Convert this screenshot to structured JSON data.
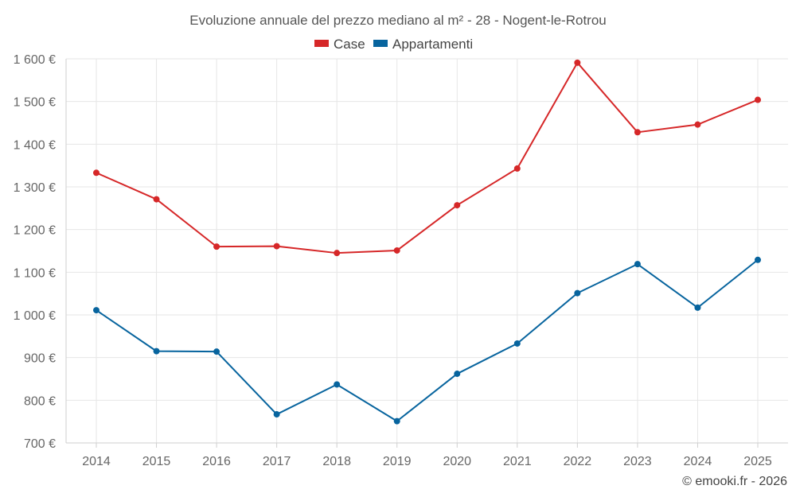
{
  "chart_data": {
    "type": "line",
    "title": "Evoluzione annuale del prezzo mediano al m² - 28 - Nogent-le-Rotrou",
    "xlabel": "",
    "ylabel": "",
    "categories": [
      "2014",
      "2015",
      "2016",
      "2017",
      "2018",
      "2019",
      "2020",
      "2021",
      "2022",
      "2023",
      "2024",
      "2025"
    ],
    "ylim": [
      700,
      1600
    ],
    "yticks": [
      700,
      800,
      900,
      1000,
      1100,
      1200,
      1300,
      1400,
      1500,
      1600
    ],
    "ytick_labels": [
      "700 €",
      "800 €",
      "900 €",
      "1 000 €",
      "1 100 €",
      "1 200 €",
      "1 300 €",
      "1 400 €",
      "1 500 €",
      "1 600 €"
    ],
    "grid": true,
    "legend_position": "top-center",
    "series": [
      {
        "name": "Case",
        "color": "#d62728",
        "values": [
          1333,
          1271,
          1160,
          1161,
          1145,
          1151,
          1257,
          1343,
          1591,
          1428,
          1446,
          1504
        ]
      },
      {
        "name": "Appartamenti",
        "color": "#07649e",
        "values": [
          1011,
          915,
          914,
          767,
          837,
          751,
          862,
          933,
          1051,
          1119,
          1017,
          1129
        ]
      }
    ]
  },
  "credit": "© emooki.fr - 2026"
}
